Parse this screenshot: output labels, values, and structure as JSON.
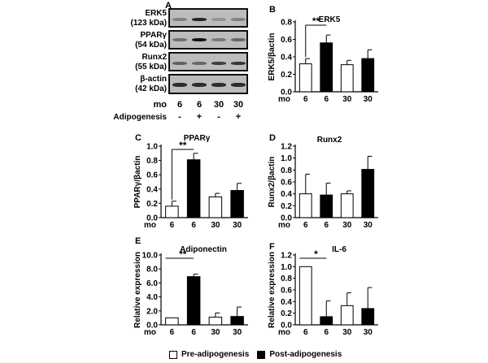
{
  "panels": {
    "A": {
      "letter": "A",
      "blots": [
        {
          "label": "ERK5",
          "size": "(123 kDa)"
        },
        {
          "label": "PPARγ",
          "size": "(54 kDa)"
        },
        {
          "label": "Runx2",
          "size": "(55 kDa)"
        },
        {
          "label": "β-actin",
          "size": "(42 kDa)"
        }
      ],
      "row_labels": {
        "mo": "mo",
        "adipogenesis": "Adipogenesis"
      },
      "lanes": [
        {
          "mo": "6",
          "adipogenesis": "-"
        },
        {
          "mo": "6",
          "adipogenesis": "+"
        },
        {
          "mo": "30",
          "adipogenesis": "-"
        },
        {
          "mo": "30",
          "adipogenesis": "+"
        }
      ]
    }
  },
  "legend": {
    "pre": "Pre-adipogenesis",
    "post": "Post-adipogenesis"
  },
  "colors": {
    "pre": "#ffffff",
    "post": "#000000"
  },
  "chart_data": [
    {
      "panel": "B",
      "type": "bar",
      "title": "ERK5",
      "xlabel": "mo",
      "ylabel": "ERK5/βactin",
      "categories": [
        "6",
        "6",
        "30",
        "30"
      ],
      "groups": [
        "pre",
        "post",
        "pre",
        "post"
      ],
      "values": [
        0.32,
        0.56,
        0.31,
        0.38
      ],
      "errors": [
        0.06,
        0.09,
        0.05,
        0.1
      ],
      "ylim": [
        0,
        0.8
      ],
      "yticks": [
        "0.0",
        "0.2",
        "0.4",
        "0.6",
        "0.8"
      ],
      "significance": {
        "label": "**",
        "between": [
          0,
          1
        ],
        "bracket": true
      }
    },
    {
      "panel": "C",
      "type": "bar",
      "title": "PPARγ",
      "xlabel": "mo",
      "ylabel": "PPARγ/βactin",
      "categories": [
        "6",
        "6",
        "30",
        "30"
      ],
      "groups": [
        "pre",
        "post",
        "pre",
        "post"
      ],
      "values": [
        0.16,
        0.81,
        0.29,
        0.38
      ],
      "errors": [
        0.07,
        0.09,
        0.05,
        0.1
      ],
      "ylim": [
        0,
        1.0
      ],
      "yticks": [
        "0.0",
        "0.2",
        "0.4",
        "0.6",
        "0.8",
        "1.0"
      ],
      "significance": {
        "label": "**",
        "between": [
          0,
          1
        ],
        "bracket": true
      }
    },
    {
      "panel": "D",
      "type": "bar",
      "title": "Runx2",
      "xlabel": "mo",
      "ylabel": "Runx2/βactin",
      "categories": [
        "6",
        "6",
        "30",
        "30"
      ],
      "groups": [
        "pre",
        "post",
        "pre",
        "post"
      ],
      "values": [
        0.4,
        0.38,
        0.4,
        0.81
      ],
      "errors": [
        0.33,
        0.2,
        0.05,
        0.22
      ],
      "ylim": [
        0,
        1.2
      ],
      "yticks": [
        "0.0",
        "0.2",
        "0.4",
        "0.6",
        "0.8",
        "1.0",
        "1.2"
      ],
      "significance": null
    },
    {
      "panel": "E",
      "type": "bar",
      "title": "Adiponectin",
      "xlabel": "mo",
      "ylabel": "Relative expression",
      "categories": [
        "6",
        "6",
        "30",
        "30"
      ],
      "groups": [
        "pre",
        "post",
        "pre",
        "post"
      ],
      "values": [
        1.0,
        6.9,
        1.1,
        1.2
      ],
      "errors": [
        0.0,
        0.35,
        0.6,
        1.35
      ],
      "ylim": [
        0,
        10.0
      ],
      "yticks": [
        "0.0",
        "2.0",
        "4.0",
        "6.0",
        "8.0",
        "10.0"
      ],
      "significance": {
        "label": "**",
        "between": [
          0,
          1
        ],
        "bracket": false
      }
    },
    {
      "panel": "F",
      "type": "bar",
      "title": "IL-6",
      "xlabel": "mo",
      "ylabel": "Relative expression",
      "categories": [
        "6",
        "6",
        "30",
        "30"
      ],
      "groups": [
        "pre",
        "post",
        "pre",
        "post"
      ],
      "values": [
        1.0,
        0.14,
        0.33,
        0.28
      ],
      "errors": [
        0.0,
        0.27,
        0.22,
        0.36
      ],
      "ylim": [
        0,
        1.2
      ],
      "yticks": [
        "0.0",
        "0.2",
        "0.4",
        "0.6",
        "0.8",
        "1.0",
        "1.2"
      ],
      "significance": {
        "label": "*",
        "between": [
          0,
          1
        ],
        "bracket": false
      }
    }
  ]
}
